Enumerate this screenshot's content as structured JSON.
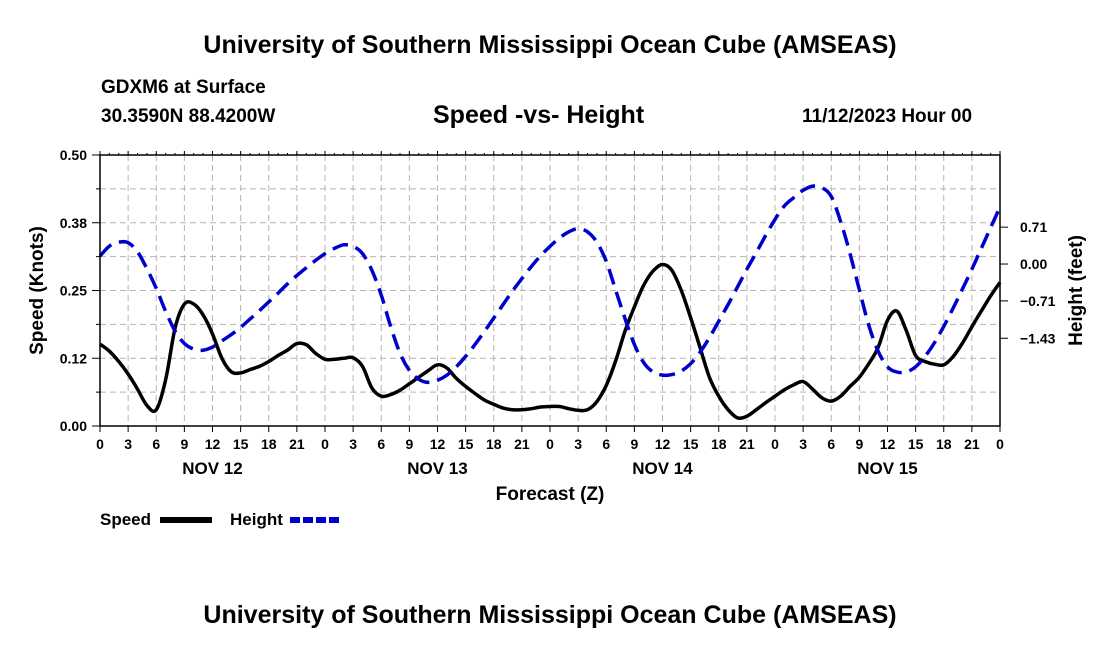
{
  "header": {
    "title": "University of Southern Mississippi Ocean Cube (AMSEAS)",
    "station": "GDXM6 at Surface",
    "coords": "30.3590N  88.4200W",
    "subtitle": "Speed -vs- Height",
    "date": "11/12/2023 Hour 00"
  },
  "footer": {
    "title": "University of Southern Mississippi Ocean Cube (AMSEAS)"
  },
  "colors": {
    "speed": "#000000",
    "height": "#0000cc",
    "grid": "#b4b4b4"
  },
  "chart_data": {
    "type": "line",
    "xlabel": "Forecast (Z)",
    "ylabel": "Speed (Knots)",
    "y2label": "Height (feet)",
    "x_range_hours": [
      0,
      96
    ],
    "x_ticks": [
      {
        "h": 0,
        "label": "0"
      },
      {
        "h": 3,
        "label": "3"
      },
      {
        "h": 6,
        "label": "6"
      },
      {
        "h": 9,
        "label": "9"
      },
      {
        "h": 12,
        "label": "12"
      },
      {
        "h": 15,
        "label": "15"
      },
      {
        "h": 18,
        "label": "18"
      },
      {
        "h": 21,
        "label": "21"
      },
      {
        "h": 24,
        "label": "0"
      },
      {
        "h": 27,
        "label": "3"
      },
      {
        "h": 30,
        "label": "6"
      },
      {
        "h": 33,
        "label": "9"
      },
      {
        "h": 36,
        "label": "12"
      },
      {
        "h": 39,
        "label": "15"
      },
      {
        "h": 42,
        "label": "18"
      },
      {
        "h": 45,
        "label": "21"
      },
      {
        "h": 48,
        "label": "0"
      },
      {
        "h": 51,
        "label": "3"
      },
      {
        "h": 54,
        "label": "6"
      },
      {
        "h": 57,
        "label": "9"
      },
      {
        "h": 60,
        "label": "12"
      },
      {
        "h": 63,
        "label": "15"
      },
      {
        "h": 66,
        "label": "18"
      },
      {
        "h": 69,
        "label": "21"
      },
      {
        "h": 72,
        "label": "0"
      },
      {
        "h": 75,
        "label": "3"
      },
      {
        "h": 78,
        "label": "6"
      },
      {
        "h": 81,
        "label": "9"
      },
      {
        "h": 84,
        "label": "12"
      },
      {
        "h": 87,
        "label": "15"
      },
      {
        "h": 90,
        "label": "18"
      },
      {
        "h": 93,
        "label": "21"
      },
      {
        "h": 96,
        "label": "0"
      }
    ],
    "day_labels": [
      {
        "h": 12,
        "label": "NOV 12"
      },
      {
        "h": 36,
        "label": "NOV 13"
      },
      {
        "h": 60,
        "label": "NOV 14"
      },
      {
        "h": 84,
        "label": "NOV 15"
      }
    ],
    "y_left": {
      "range": [
        0,
        0.5
      ],
      "ticks": [
        {
          "v": 0.0,
          "label": "0.00"
        },
        {
          "v": 0.125,
          "label": "0.12"
        },
        {
          "v": 0.25,
          "label": "0.25"
        },
        {
          "v": 0.375,
          "label": "0.38"
        },
        {
          "v": 0.5,
          "label": "0.50"
        }
      ]
    },
    "y_right": {
      "range": [
        -3.12,
        2.1
      ],
      "ticks": [
        {
          "v": 0.71,
          "label": "0.71"
        },
        {
          "v": 0.0,
          "label": "0.00"
        },
        {
          "v": -0.71,
          "label": "−0.71"
        },
        {
          "v": -1.43,
          "label": "−1.43"
        }
      ]
    },
    "series": [
      {
        "name": "Speed",
        "axis": "left",
        "style": "solid",
        "points": [
          [
            0,
            0.151
          ],
          [
            1,
            0.138
          ],
          [
            2,
            0.119
          ],
          [
            3,
            0.096
          ],
          [
            4,
            0.068
          ],
          [
            5,
            0.038
          ],
          [
            6,
            0.03
          ],
          [
            7,
            0.085
          ],
          [
            8,
            0.18
          ],
          [
            9,
            0.225
          ],
          [
            10,
            0.225
          ],
          [
            11,
            0.205
          ],
          [
            12,
            0.17
          ],
          [
            13,
            0.125
          ],
          [
            14,
            0.1
          ],
          [
            15,
            0.098
          ],
          [
            16,
            0.104
          ],
          [
            17,
            0.11
          ],
          [
            18,
            0.119
          ],
          [
            19,
            0.13
          ],
          [
            20,
            0.14
          ],
          [
            21,
            0.152
          ],
          [
            22,
            0.15
          ],
          [
            23,
            0.134
          ],
          [
            24,
            0.123
          ],
          [
            25,
            0.123
          ],
          [
            26,
            0.125
          ],
          [
            27,
            0.126
          ],
          [
            28,
            0.11
          ],
          [
            29,
            0.07
          ],
          [
            30,
            0.055
          ],
          [
            31,
            0.058
          ],
          [
            32,
            0.066
          ],
          [
            33,
            0.078
          ],
          [
            34,
            0.09
          ],
          [
            35,
            0.102
          ],
          [
            36,
            0.113
          ],
          [
            37,
            0.107
          ],
          [
            38,
            0.088
          ],
          [
            39,
            0.073
          ],
          [
            40,
            0.06
          ],
          [
            41,
            0.048
          ],
          [
            42,
            0.04
          ],
          [
            43,
            0.033
          ],
          [
            44,
            0.03
          ],
          [
            45,
            0.03
          ],
          [
            46,
            0.032
          ],
          [
            47,
            0.035
          ],
          [
            48,
            0.036
          ],
          [
            49,
            0.036
          ],
          [
            50,
            0.032
          ],
          [
            51,
            0.029
          ],
          [
            52,
            0.03
          ],
          [
            53,
            0.045
          ],
          [
            54,
            0.075
          ],
          [
            55,
            0.12
          ],
          [
            56,
            0.175
          ],
          [
            57,
            0.22
          ],
          [
            58,
            0.26
          ],
          [
            59,
            0.286
          ],
          [
            60,
            0.298
          ],
          [
            61,
            0.287
          ],
          [
            62,
            0.25
          ],
          [
            63,
            0.2
          ],
          [
            64,
            0.145
          ],
          [
            65,
            0.09
          ],
          [
            66,
            0.055
          ],
          [
            67,
            0.03
          ],
          [
            68,
            0.015
          ],
          [
            69,
            0.018
          ],
          [
            70,
            0.03
          ],
          [
            71,
            0.043
          ],
          [
            72,
            0.055
          ],
          [
            73,
            0.067
          ],
          [
            74,
            0.076
          ],
          [
            75,
            0.082
          ],
          [
            76,
            0.068
          ],
          [
            77,
            0.052
          ],
          [
            78,
            0.046
          ],
          [
            79,
            0.055
          ],
          [
            80,
            0.073
          ],
          [
            81,
            0.09
          ],
          [
            82,
            0.115
          ],
          [
            83,
            0.145
          ],
          [
            84,
            0.195
          ],
          [
            85,
            0.212
          ],
          [
            86,
            0.176
          ],
          [
            87,
            0.13
          ],
          [
            88,
            0.119
          ],
          [
            89,
            0.114
          ],
          [
            90,
            0.113
          ],
          [
            91,
            0.128
          ],
          [
            92,
            0.153
          ],
          [
            93,
            0.183
          ],
          [
            94,
            0.212
          ],
          [
            95,
            0.24
          ],
          [
            96,
            0.265
          ]
        ]
      },
      {
        "name": "Height",
        "axis": "right",
        "style": "dashed",
        "points": [
          [
            0,
            0.155
          ],
          [
            1,
            0.345
          ],
          [
            2,
            0.42
          ],
          [
            3,
            0.41
          ],
          [
            4,
            0.235
          ],
          [
            5,
            -0.09
          ],
          [
            6,
            -0.47
          ],
          [
            7,
            -0.91
          ],
          [
            8,
            -1.29
          ],
          [
            9,
            -1.53
          ],
          [
            10,
            -1.64
          ],
          [
            11,
            -1.66
          ],
          [
            12,
            -1.6
          ],
          [
            13,
            -1.48
          ],
          [
            14,
            -1.36
          ],
          [
            15,
            -1.22
          ],
          [
            16,
            -1.06
          ],
          [
            17,
            -0.9
          ],
          [
            18,
            -0.73
          ],
          [
            19,
            -0.56
          ],
          [
            20,
            -0.38
          ],
          [
            21,
            -0.22
          ],
          [
            22,
            -0.07
          ],
          [
            23,
            0.07
          ],
          [
            24,
            0.2
          ],
          [
            25,
            0.3
          ],
          [
            26,
            0.37
          ],
          [
            27,
            0.34
          ],
          [
            28,
            0.2
          ],
          [
            29,
            -0.12
          ],
          [
            30,
            -0.6
          ],
          [
            31,
            -1.2
          ],
          [
            32,
            -1.72
          ],
          [
            33,
            -2.05
          ],
          [
            34,
            -2.22
          ],
          [
            35,
            -2.28
          ],
          [
            36,
            -2.24
          ],
          [
            37,
            -2.14
          ],
          [
            38,
            -1.98
          ],
          [
            39,
            -1.78
          ],
          [
            40,
            -1.55
          ],
          [
            41,
            -1.3
          ],
          [
            42,
            -1.04
          ],
          [
            43,
            -0.78
          ],
          [
            44,
            -0.52
          ],
          [
            45,
            -0.28
          ],
          [
            46,
            -0.05
          ],
          [
            47,
            0.16
          ],
          [
            48,
            0.34
          ],
          [
            49,
            0.5
          ],
          [
            50,
            0.62
          ],
          [
            51,
            0.68
          ],
          [
            52,
            0.62
          ],
          [
            53,
            0.42
          ],
          [
            54,
            0.05
          ],
          [
            55,
            -0.5
          ],
          [
            56,
            -1.05
          ],
          [
            57,
            -1.55
          ],
          [
            58,
            -1.9
          ],
          [
            59,
            -2.08
          ],
          [
            60,
            -2.14
          ],
          [
            61,
            -2.13
          ],
          [
            62,
            -2.06
          ],
          [
            63,
            -1.92
          ],
          [
            64,
            -1.7
          ],
          [
            65,
            -1.42
          ],
          [
            66,
            -1.1
          ],
          [
            67,
            -0.78
          ],
          [
            68,
            -0.44
          ],
          [
            69,
            -0.1
          ],
          [
            70,
            0.22
          ],
          [
            71,
            0.55
          ],
          [
            72,
            0.86
          ],
          [
            73,
            1.12
          ],
          [
            74,
            1.28
          ],
          [
            75,
            1.42
          ],
          [
            76,
            1.5
          ],
          [
            77,
            1.47
          ],
          [
            78,
            1.3
          ],
          [
            79,
            0.82
          ],
          [
            80,
            0.2
          ],
          [
            81,
            -0.5
          ],
          [
            82,
            -1.18
          ],
          [
            83,
            -1.68
          ],
          [
            84,
            -1.98
          ],
          [
            85,
            -2.08
          ],
          [
            86,
            -2.08
          ],
          [
            87,
            -1.98
          ],
          [
            88,
            -1.78
          ],
          [
            89,
            -1.52
          ],
          [
            90,
            -1.2
          ],
          [
            91,
            -0.85
          ],
          [
            92,
            -0.48
          ],
          [
            93,
            -0.1
          ],
          [
            94,
            0.3
          ],
          [
            95,
            0.7
          ],
          [
            96,
            1.1
          ]
        ]
      }
    ],
    "legend": [
      {
        "label": "Speed",
        "style": "solid"
      },
      {
        "label": "Height",
        "style": "dashed"
      }
    ]
  }
}
